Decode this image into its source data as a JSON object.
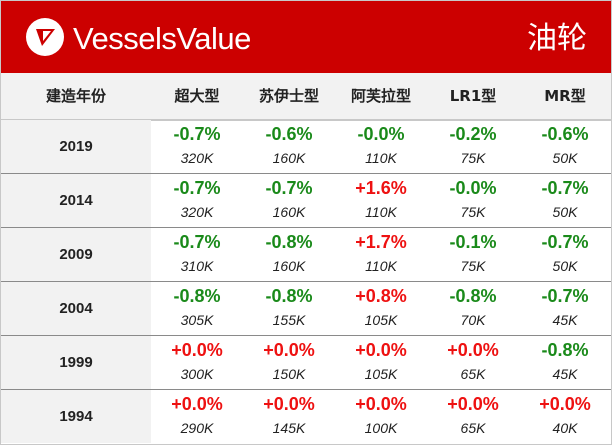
{
  "header": {
    "brand": "VesselsValue",
    "title": "油轮",
    "logo_icon": "vesselsvalue-logo-icon",
    "background_color": "#cc0000"
  },
  "table": {
    "columns": [
      "建造年份",
      "超大型",
      "苏伊士型",
      "阿芙拉型",
      "LR1型",
      "MR型"
    ],
    "rows": [
      {
        "year": "2019",
        "cells": [
          {
            "pct": "-0.7%",
            "val": "320K"
          },
          {
            "pct": "-0.6%",
            "val": "160K"
          },
          {
            "pct": "-0.0%",
            "val": "110K"
          },
          {
            "pct": "-0.2%",
            "val": "75K"
          },
          {
            "pct": "-0.6%",
            "val": "50K"
          }
        ]
      },
      {
        "year": "2014",
        "cells": [
          {
            "pct": "-0.7%",
            "val": "320K"
          },
          {
            "pct": "-0.7%",
            "val": "160K"
          },
          {
            "pct": "+1.6%",
            "val": "110K"
          },
          {
            "pct": "-0.0%",
            "val": "75K"
          },
          {
            "pct": "-0.7%",
            "val": "50K"
          }
        ]
      },
      {
        "year": "2009",
        "cells": [
          {
            "pct": "-0.7%",
            "val": "310K"
          },
          {
            "pct": "-0.8%",
            "val": "160K"
          },
          {
            "pct": "+1.7%",
            "val": "110K"
          },
          {
            "pct": "-0.1%",
            "val": "75K"
          },
          {
            "pct": "-0.7%",
            "val": "50K"
          }
        ]
      },
      {
        "year": "2004",
        "cells": [
          {
            "pct": "-0.8%",
            "val": "305K"
          },
          {
            "pct": "-0.8%",
            "val": "155K"
          },
          {
            "pct": "+0.8%",
            "val": "105K"
          },
          {
            "pct": "-0.8%",
            "val": "70K"
          },
          {
            "pct": "-0.7%",
            "val": "45K"
          }
        ]
      },
      {
        "year": "1999",
        "cells": [
          {
            "pct": "+0.0%",
            "val": "300K"
          },
          {
            "pct": "+0.0%",
            "val": "150K"
          },
          {
            "pct": "+0.0%",
            "val": "105K"
          },
          {
            "pct": "+0.0%",
            "val": "65K"
          },
          {
            "pct": "-0.8%",
            "val": "45K"
          }
        ]
      },
      {
        "year": "1994",
        "cells": [
          {
            "pct": "+0.0%",
            "val": "290K"
          },
          {
            "pct": "+0.0%",
            "val": "145K"
          },
          {
            "pct": "+0.0%",
            "val": "100K"
          },
          {
            "pct": "+0.0%",
            "val": "65K"
          },
          {
            "pct": "+0.0%",
            "val": "40K"
          }
        ]
      }
    ]
  },
  "colors": {
    "negative": "#1a8a1a",
    "positive": "#ee1111"
  }
}
